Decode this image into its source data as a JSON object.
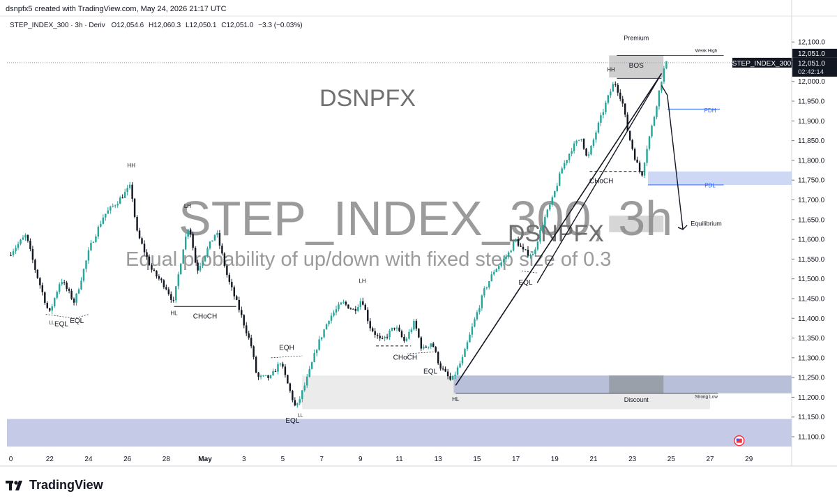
{
  "credit": "dsnpfx5 created with TradingView.com, May 24, 2026 21:17 UTC",
  "header": {
    "symbol": "STEP_INDEX_300",
    "interval": "3h",
    "broker": "Deriv",
    "open": "O12,054.6",
    "high": "H12,060.3",
    "low": "L12,050.1",
    "close": "C12,051.0",
    "change": "−3.3 (−0.03%)"
  },
  "watermark": {
    "brand": "DSNPFX",
    "brand2": "DSNPFX",
    "title": "STEP_INDEX_300, 3h",
    "description": "Equal probability of up/down with fixed step size of 0.3"
  },
  "price_labels": {
    "current": "12,051.0",
    "symbol_tag": "STEP_INDEX_300",
    "last": "12,051.0",
    "countdown": "02:42:14"
  },
  "annotations": {
    "premium": "Premium",
    "discount": "Discount",
    "weak_high": "Weak High",
    "strong_low": "Strong Low",
    "pdh": "PDH",
    "pdl": "PDL",
    "bos": "BOS",
    "equilibrium": "Equilibrium",
    "hh1": "HH",
    "hh2": "HH",
    "lh1": "LH",
    "lh2": "LH",
    "hl1": "HL",
    "hl2": "HL",
    "ll1": "LL",
    "ll2": "LL",
    "eql1": "EQL",
    "eql2": "EQL",
    "eql3": "EQL",
    "eql4": "EQL",
    "eql5": "EQL",
    "eqh": "EQH",
    "choch1": "CHoCH",
    "choch2": "CHoCH",
    "choch3": "CHoCH"
  },
  "logo_text": "TradingView",
  "chart_data": {
    "type": "candlestick",
    "y_axis": {
      "ticks": [
        12100,
        12050,
        12000,
        11950,
        11900,
        11850,
        11800,
        11750,
        11700,
        11650,
        11600,
        11550,
        11500,
        11450,
        11400,
        11350,
        11300,
        11250,
        11200,
        11150,
        11100
      ],
      "tick_labels": [
        "12,100.0",
        "12,050.0",
        "12,000.0",
        "11,950.0",
        "11,900.0",
        "11,850.0",
        "11,800.0",
        "11,750.0",
        "11,700.0",
        "11,650.0",
        "11,600.0",
        "11,550.0",
        "11,500.0",
        "11,450.0",
        "11,400.0",
        "11,350.0",
        "11,300.0",
        "11,250.0",
        "11,200.0",
        "11,150.0",
        "11,100.0"
      ],
      "range": [
        11070,
        12125
      ]
    },
    "x_axis": {
      "tick_labels": [
        "0",
        "22",
        "24",
        "26",
        "28",
        "May",
        "3",
        "5",
        "7",
        "9",
        "11",
        "13",
        "15",
        "17",
        "19",
        "21",
        "23",
        "25",
        "27",
        "29"
      ],
      "tick_days": [
        20,
        22,
        24,
        26,
        28,
        30,
        32,
        34,
        36,
        38,
        40,
        42,
        44,
        46,
        48,
        50,
        52,
        54,
        56,
        58
      ],
      "range_days": [
        19.8,
        60.2
      ],
      "last_candle_day": 53.85
    },
    "price_path": [
      [
        20.0,
        11560
      ],
      [
        20.9,
        11610
      ],
      [
        21.4,
        11520
      ],
      [
        22.1,
        11410
      ],
      [
        22.7,
        11500
      ],
      [
        23.4,
        11440
      ],
      [
        24.2,
        11580
      ],
      [
        24.9,
        11660
      ],
      [
        25.7,
        11700
      ],
      [
        26.3,
        11735
      ],
      [
        26.6,
        11620
      ],
      [
        27.4,
        11520
      ],
      [
        28.1,
        11480
      ],
      [
        28.5,
        11440
      ],
      [
        29.0,
        11580
      ],
      [
        29.3,
        11640
      ],
      [
        29.7,
        11520
      ],
      [
        30.2,
        11570
      ],
      [
        30.7,
        11620
      ],
      [
        31.3,
        11500
      ],
      [
        31.9,
        11420
      ],
      [
        32.5,
        11330
      ],
      [
        32.8,
        11250
      ],
      [
        33.5,
        11250
      ],
      [
        34.0,
        11290
      ],
      [
        34.4,
        11230
      ],
      [
        34.8,
        11170
      ],
      [
        35.4,
        11250
      ],
      [
        35.9,
        11330
      ],
      [
        36.5,
        11400
      ],
      [
        37.2,
        11440
      ],
      [
        37.8,
        11420
      ],
      [
        38.2,
        11450
      ],
      [
        38.6,
        11380
      ],
      [
        39.2,
        11340
      ],
      [
        39.9,
        11380
      ],
      [
        40.4,
        11340
      ],
      [
        40.9,
        11390
      ],
      [
        41.3,
        11320
      ],
      [
        41.8,
        11340
      ],
      [
        42.2,
        11280
      ],
      [
        42.8,
        11240
      ],
      [
        43.4,
        11300
      ],
      [
        43.9,
        11380
      ],
      [
        44.5,
        11470
      ],
      [
        45.0,
        11520
      ],
      [
        45.7,
        11560
      ],
      [
        46.1,
        11600
      ],
      [
        46.5,
        11570
      ],
      [
        47.0,
        11560
      ],
      [
        47.5,
        11640
      ],
      [
        48.0,
        11700
      ],
      [
        48.5,
        11780
      ],
      [
        49.0,
        11830
      ],
      [
        49.5,
        11860
      ],
      [
        49.8,
        11800
      ],
      [
        50.3,
        11880
      ],
      [
        50.8,
        11950
      ],
      [
        51.2,
        12000
      ],
      [
        51.6,
        11950
      ],
      [
        51.9,
        11870
      ],
      [
        52.3,
        11800
      ],
      [
        52.6,
        11760
      ],
      [
        52.9,
        11840
      ],
      [
        53.2,
        11900
      ],
      [
        53.4,
        11950
      ],
      [
        53.6,
        12000
      ],
      [
        53.85,
        12051
      ]
    ],
    "levels": {
      "weak_high": 12066,
      "pdh": 11930,
      "pdl_zone": [
        11738,
        11772
      ],
      "premium_zone": [
        12010,
        12066
      ],
      "equilibrium_zone": [
        11618,
        11660
      ],
      "discount_zone": [
        11170,
        11255
      ],
      "discount_inner": [
        11210,
        11255
      ],
      "strong_low": 11210,
      "lower_demand": [
        11075,
        11145
      ],
      "current": 12051
    },
    "trendline": [
      [
        42.9,
        11230
      ],
      [
        53.5,
        12020
      ]
    ],
    "projection": [
      [
        53.5,
        11990
      ],
      [
        53.8,
        11965
      ],
      [
        54.6,
        11625
      ]
    ],
    "grid": false
  }
}
